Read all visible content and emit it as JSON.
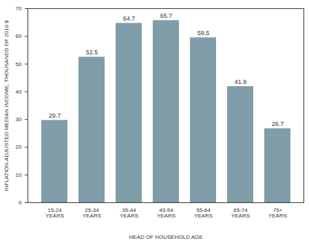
{
  "chart_data": {
    "type": "bar",
    "x_label": "HEAD OF HOUSEHOLD AGE",
    "y_label": "INFLATION-ADJUSTED MEDIAN INCOME, THOUSANDS OF 2010 $",
    "categories": [
      "15-24 YEARS",
      "25-34 YEARS",
      "35-44 YEARS",
      "45-54 YEARS",
      "55-64 YEARS",
      "65-74 YEARS",
      "75+ YEARS"
    ],
    "values": [
      29.7,
      52.5,
      64.7,
      65.7,
      59.5,
      41.9,
      26.7
    ],
    "color": "#7f9ea9",
    "ylim": [
      0,
      70
    ],
    "yticks": [
      0,
      10,
      20,
      30,
      40,
      50,
      60,
      70
    ],
    "grid": false,
    "data_labels": true
  }
}
